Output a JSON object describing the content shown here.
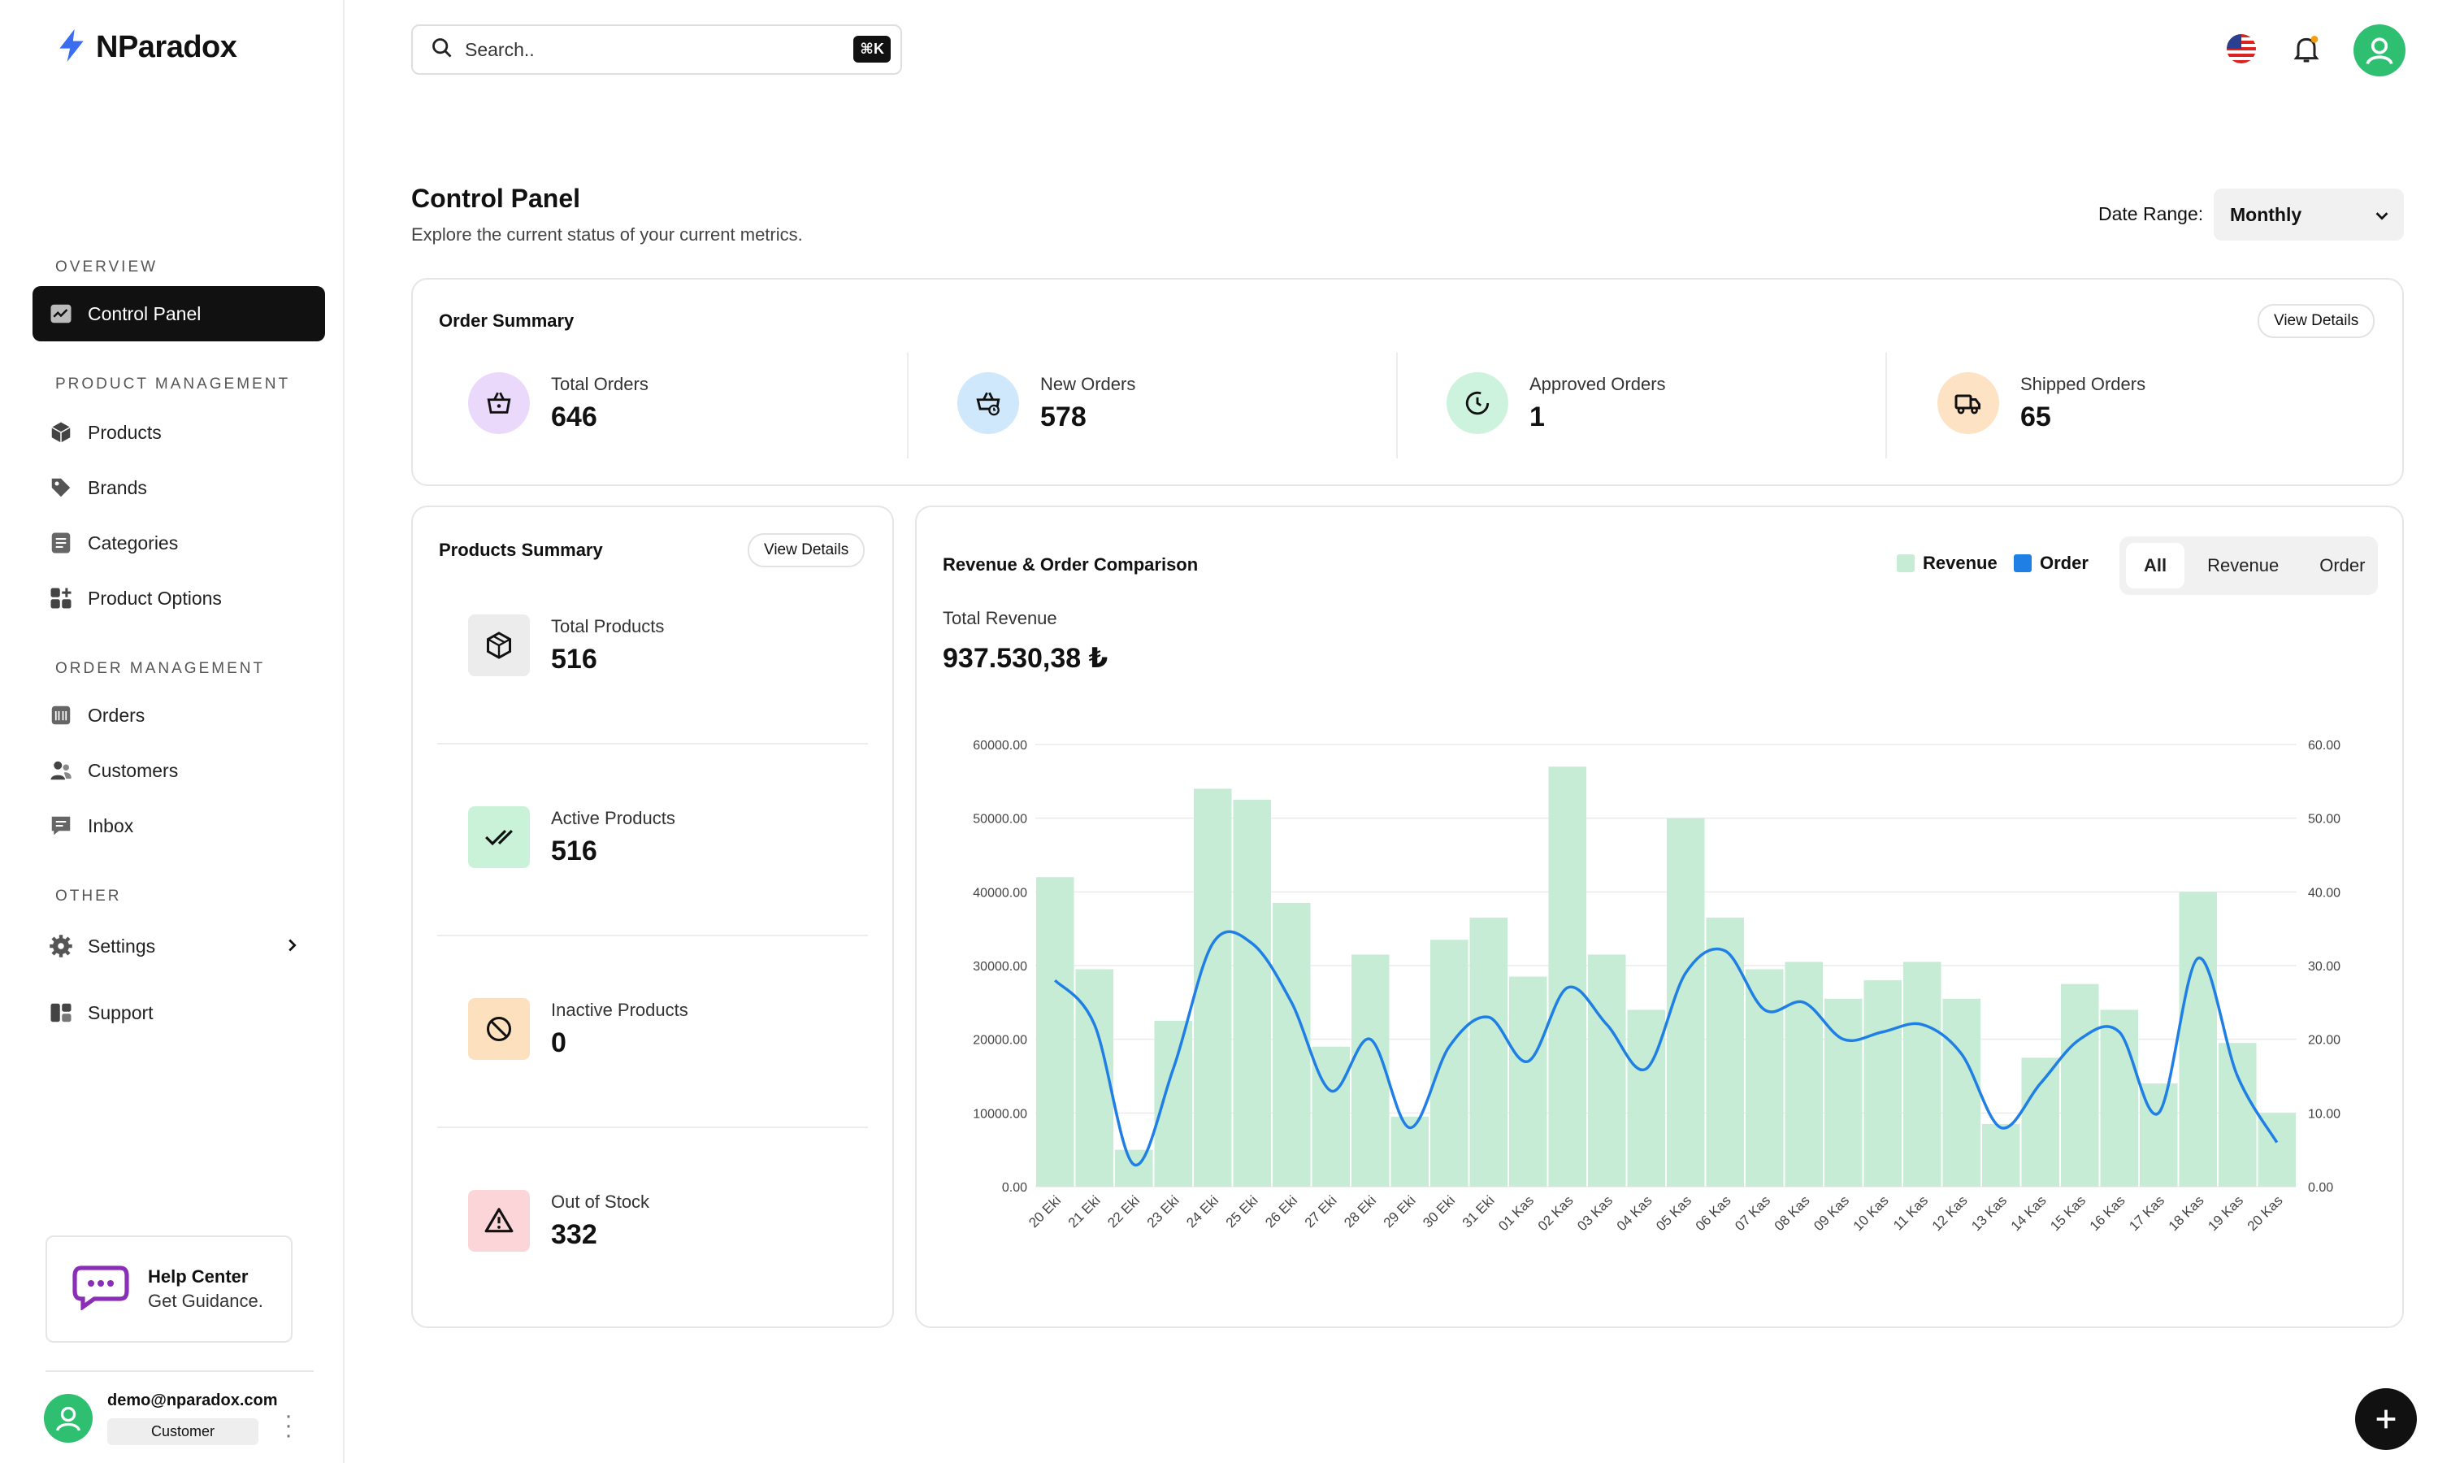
{
  "brand": {
    "name": "NParadox"
  },
  "sidebar": {
    "sections": [
      {
        "label": "OVERVIEW"
      },
      {
        "label": "PRODUCT MANAGEMENT"
      },
      {
        "label": "ORDER MANAGEMENT"
      },
      {
        "label": "OTHER"
      }
    ],
    "items": [
      {
        "label": "Control Panel",
        "icon": "chart-icon"
      },
      {
        "label": "Products",
        "icon": "box-icon"
      },
      {
        "label": "Brands",
        "icon": "tag-icon"
      },
      {
        "label": "Categories",
        "icon": "list-icon"
      },
      {
        "label": "Product Options",
        "icon": "grid-plus-icon"
      },
      {
        "label": "Orders",
        "icon": "cart-icon"
      },
      {
        "label": "Customers",
        "icon": "users-icon"
      },
      {
        "label": "Inbox",
        "icon": "message-icon"
      },
      {
        "label": "Settings",
        "icon": "gear-icon"
      },
      {
        "label": "Support",
        "icon": "support-icon"
      }
    ],
    "help": {
      "title": "Help Center",
      "subtitle": "Get Guidance."
    },
    "user": {
      "email": "demo@nparadox.com",
      "role": "Customer"
    }
  },
  "header": {
    "search_placeholder": "Search..",
    "shortcut": "⌘K"
  },
  "page": {
    "title": "Control Panel",
    "subtitle": "Explore the current status of your current metrics.",
    "date_range_label": "Date Range:",
    "date_range_value": "Monthly"
  },
  "order_summary": {
    "title": "Order Summary",
    "view_details": "View Details",
    "metrics": [
      {
        "label": "Total Orders",
        "value": "646",
        "color": "#ead9fb"
      },
      {
        "label": "New Orders",
        "value": "578",
        "color": "#cfe8fb"
      },
      {
        "label": "Approved Orders",
        "value": "1",
        "color": "#cdf3df"
      },
      {
        "label": "Shipped Orders",
        "value": "65",
        "color": "#fde2c3"
      }
    ]
  },
  "products_summary": {
    "title": "Products Summary",
    "view_details": "View Details",
    "metrics": [
      {
        "label": "Total Products",
        "value": "516",
        "color": "#ececec"
      },
      {
        "label": "Active Products",
        "value": "516",
        "color": "#c9f2d9"
      },
      {
        "label": "Inactive Products",
        "value": "0",
        "color": "#fde0bd"
      },
      {
        "label": "Out of Stock",
        "value": "332",
        "color": "#fcd5d8"
      }
    ]
  },
  "revenue": {
    "title": "Revenue & Order Comparison",
    "legend": {
      "revenue": "Revenue",
      "order": "Order"
    },
    "tabs": [
      "All",
      "Revenue",
      "Order"
    ],
    "total_label": "Total Revenue",
    "total_value": "937.530,38 ₺"
  },
  "chart_data": {
    "type": "bar",
    "categories": [
      "20 Eki",
      "21 Eki",
      "22 Eki",
      "23 Eki",
      "24 Eki",
      "25 Eki",
      "26 Eki",
      "27 Eki",
      "28 Eki",
      "29 Eki",
      "30 Eki",
      "31 Eki",
      "01 Kas",
      "02 Kas",
      "03 Kas",
      "04 Kas",
      "05 Kas",
      "06 Kas",
      "07 Kas",
      "08 Kas",
      "09 Kas",
      "10 Kas",
      "11 Kas",
      "12 Kas",
      "13 Kas",
      "14 Kas",
      "15 Kas",
      "16 Kas",
      "17 Kas",
      "18 Kas",
      "19 Kas",
      "20 Kas"
    ],
    "series": [
      {
        "name": "Revenue",
        "axis": "left",
        "color": "#c6ecd6",
        "values": [
          42000,
          29500,
          5000,
          22500,
          54000,
          52500,
          38500,
          19000,
          31500,
          9500,
          33500,
          36500,
          28500,
          57000,
          31500,
          24000,
          50000,
          36500,
          29500,
          30500,
          25500,
          28000,
          30500,
          25500,
          8500,
          17500,
          27500,
          24000,
          14000,
          40000,
          19500,
          10000
        ]
      },
      {
        "name": "Order",
        "axis": "right",
        "color": "#1f7fe5",
        "values": [
          28,
          22,
          3,
          16,
          33,
          33,
          25,
          13,
          20,
          8,
          19,
          23,
          17,
          27,
          22,
          16,
          29,
          32,
          24,
          25,
          20,
          21,
          22,
          18,
          8,
          14,
          20,
          21,
          10,
          31,
          15,
          6
        ]
      }
    ],
    "ylim": [
      0,
      60000
    ],
    "y2lim": [
      0,
      60
    ],
    "yticks": [
      "0.00",
      "10000.00",
      "20000.00",
      "30000.00",
      "40000.00",
      "50000.00",
      "60000.00"
    ],
    "y2ticks": [
      "0.00",
      "10.00",
      "20.00",
      "30.00",
      "40.00",
      "50.00",
      "60.00"
    ],
    "grid": true
  }
}
